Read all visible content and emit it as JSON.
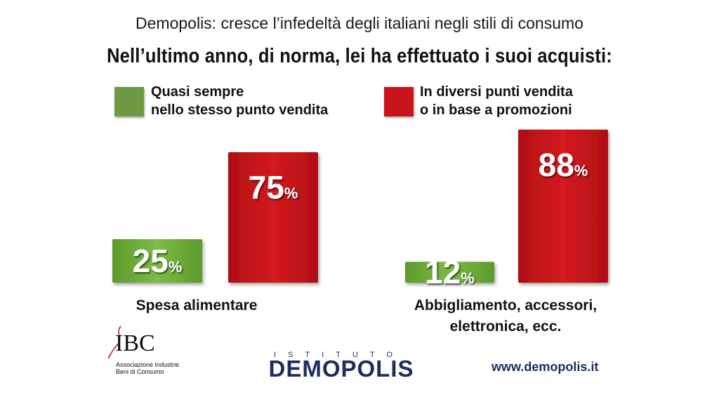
{
  "header": {
    "subtitle": "Demopolis: cresce l’infedeltà degli italiani negli stili di consumo",
    "title": "Nell’ultimo anno, di norma, lei ha effettuato i suoi acquisti:"
  },
  "legend": [
    {
      "line1": "Quasi sempre",
      "line2": "nello stesso punto vendita",
      "color": "#6e9a44"
    },
    {
      "line1": "In diversi punti vendita",
      "line2": "o in base a promozioni",
      "color": "#c8141a"
    }
  ],
  "chart_data": {
    "type": "bar",
    "title": "Nell’ultimo anno, di norma, lei ha effettuato i suoi acquisti:",
    "categories": [
      [
        "Spesa alimentare"
      ],
      [
        "Abbigliamento, accessori,",
        "elettronica, ecc."
      ]
    ],
    "series": [
      {
        "name": "Quasi sempre nello stesso punto vendita",
        "values": [
          25,
          12
        ],
        "color": "#6fae3a"
      },
      {
        "name": "In diversi punti vendita o in base a promozioni",
        "values": [
          75,
          88
        ],
        "color": "#c8141a"
      }
    ],
    "value_suffix": "%",
    "ylim": [
      0,
      100
    ],
    "grid": false,
    "legend_position": "top"
  },
  "footer": {
    "ibc_logo": "IBC",
    "ibc_sub1": "Associazione Industrie",
    "ibc_sub2": "Beni di Consumo",
    "institute_label": "ISTITUTO",
    "institute_name": "DEMOPOLIS",
    "url": "www.demopolis.it"
  }
}
